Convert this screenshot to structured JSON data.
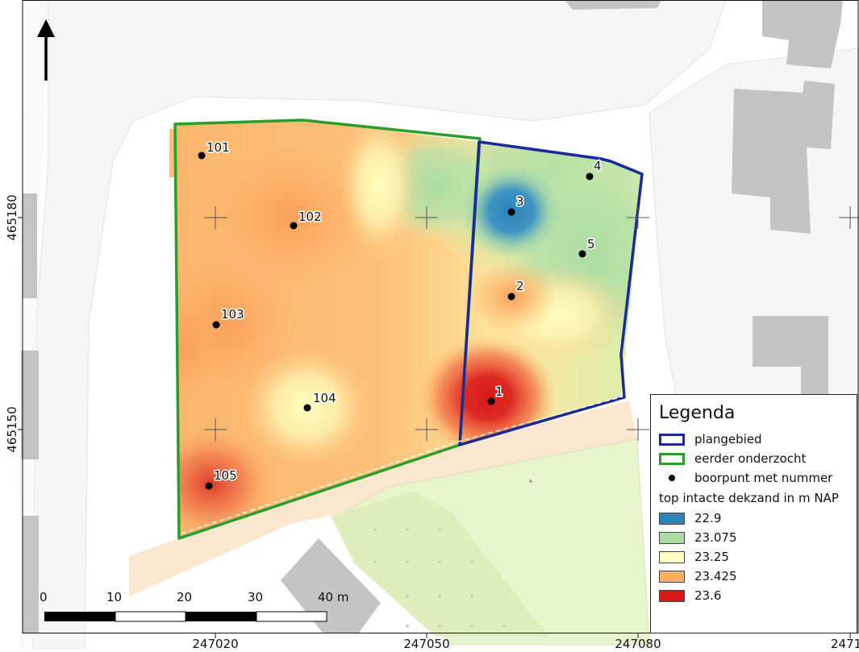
{
  "map": {
    "colors": {
      "plangebied": "#1a2a9c",
      "eerder_onderzocht": "#2a9d2a",
      "boorpunt": "#000000",
      "class_1": "#2b83ba",
      "class_2": "#abdda4",
      "class_3": "#ffffbf",
      "class_4": "#fdae61",
      "class_5": "#d7191c",
      "road": "#f7f7f7",
      "building": "#c4c4c4",
      "path": "#fbe6cf",
      "grass": "#e6f4c9"
    },
    "x_ticks": [
      "247020",
      "247050",
      "247080",
      "2471"
    ],
    "y_ticks": [
      "465180",
      "465150"
    ],
    "boorpunten": [
      {
        "label": "101"
      },
      {
        "label": "102"
      },
      {
        "label": "103"
      },
      {
        "label": "104"
      },
      {
        "label": "105"
      },
      {
        "label": "1"
      },
      {
        "label": "2"
      },
      {
        "label": "3"
      },
      {
        "label": "4"
      },
      {
        "label": "5"
      }
    ],
    "scalebar": {
      "labels": [
        "0",
        "10",
        "20",
        "30",
        "40 m"
      ]
    },
    "north_arrow_icon": "north-arrow-icon"
  },
  "legend": {
    "title": "Legenda",
    "items": [
      {
        "label": "plangebied"
      },
      {
        "label": "eerder onderzocht"
      },
      {
        "label": "boorpunt met nummer"
      }
    ],
    "subtitle": "top intacte dekzand in m NAP",
    "classes": [
      {
        "label": "22.9"
      },
      {
        "label": "23.075"
      },
      {
        "label": "23.25"
      },
      {
        "label": "23.425"
      },
      {
        "label": "23.6"
      }
    ]
  }
}
